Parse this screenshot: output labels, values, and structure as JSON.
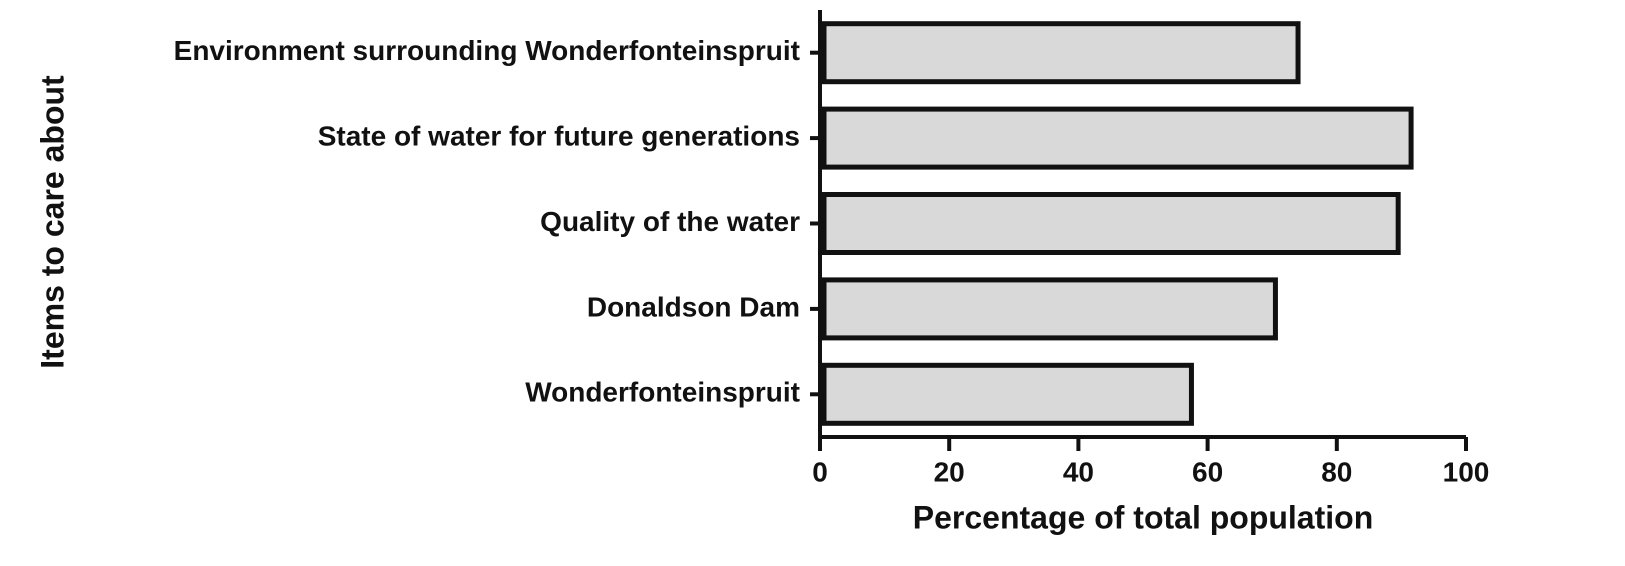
{
  "chart_data": {
    "type": "hbar",
    "x_label": "Percentage of total population",
    "y_label": "Items to care about",
    "categories": [
      "Environment surrounding Wonderfonteinspruit",
      "State of water for future generations",
      "Quality of the water",
      "Donaldson Dam",
      "Wonderfonteinspruit"
    ],
    "values": [
      74,
      91.5,
      89.5,
      70.5,
      57.5
    ],
    "color": "#d9d9d9",
    "xlim": [
      0,
      100
    ],
    "xticks": [
      0,
      20,
      40,
      60,
      80,
      100
    ]
  }
}
